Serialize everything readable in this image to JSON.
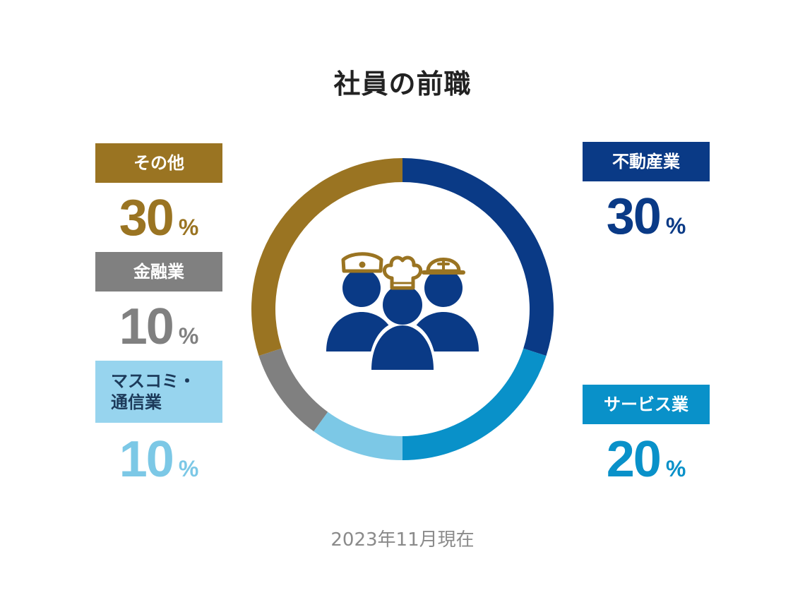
{
  "chart_data": {
    "type": "pie",
    "title": "社員の前職",
    "note": "2023年11月現在",
    "unit": "%",
    "categories": [
      "不動産業",
      "サービス業",
      "マスコミ・通信業",
      "金融業",
      "その他"
    ],
    "values": [
      30,
      20,
      10,
      10,
      30
    ],
    "labels": {
      "real_estate": "不動産業",
      "service": "サービス業",
      "media_line1": "マスコミ・",
      "media_line2": "通信業",
      "finance": "金融業",
      "other": "その他"
    },
    "value_text": {
      "real_estate": "30",
      "service": "20",
      "media": "10",
      "finance": "10",
      "other": "30"
    },
    "colors": {
      "real_estate": "#0a3a86",
      "service": "#0991c9",
      "media": "#7cc8e6",
      "media_box": "#97d4ee",
      "finance": "#808080",
      "other": "#9a7422",
      "icon_person": "#0a3a86",
      "icon_hat": "#9a7422"
    }
  },
  "icons": {
    "center": "workers-group-icon"
  }
}
